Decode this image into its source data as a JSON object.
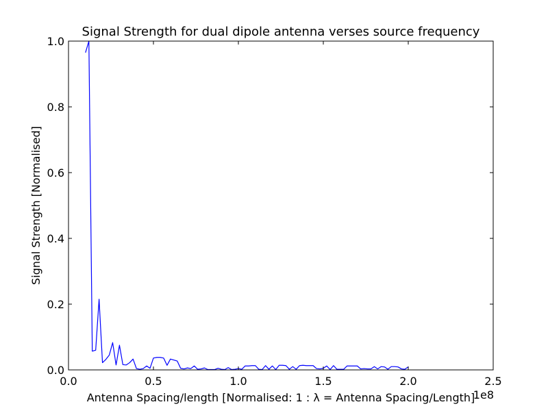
{
  "chart_data": {
    "type": "line",
    "title": "Signal Strength for dual dipole antenna verses source frequency",
    "xlabel": "Antenna Spacing/length [Normalised: 1 :  λ = Antenna Spacing/Length]",
    "ylabel": "Signal Strength [Normalised]",
    "x_offset_label": "1e8",
    "xlim": [
      0,
      2.5
    ],
    "ylim": [
      0,
      1.0
    ],
    "x_ticks": [
      {
        "value": 0.0,
        "label": "0.0"
      },
      {
        "value": 0.5,
        "label": "0.5"
      },
      {
        "value": 1.0,
        "label": "1.0"
      },
      {
        "value": 1.5,
        "label": "1.5"
      },
      {
        "value": 2.0,
        "label": "2.0"
      },
      {
        "value": 2.5,
        "label": "2.5"
      }
    ],
    "y_ticks": [
      {
        "value": 0.0,
        "label": "0.0"
      },
      {
        "value": 0.2,
        "label": "0.2"
      },
      {
        "value": 0.4,
        "label": "0.4"
      },
      {
        "value": 0.6,
        "label": "0.6"
      },
      {
        "value": 0.8,
        "label": "0.8"
      },
      {
        "value": 1.0,
        "label": "1.0"
      }
    ],
    "grid": false,
    "line_color": "#0000ff",
    "series": [
      {
        "x": [
          0.1,
          0.12,
          0.14,
          0.16,
          0.18,
          0.2,
          0.22,
          0.24,
          0.26,
          0.28,
          0.3,
          0.32,
          0.34,
          0.36,
          0.38,
          0.4,
          0.42,
          0.44,
          0.46,
          0.48,
          0.5,
          0.52,
          0.54,
          0.56,
          0.58,
          0.6,
          0.62,
          0.64,
          0.66,
          0.68,
          0.7,
          0.72,
          0.74,
          0.76,
          0.78,
          0.8,
          0.82,
          0.84,
          0.86,
          0.88,
          0.9,
          0.92,
          0.94,
          0.96,
          0.98,
          1.0,
          1.02,
          1.04,
          1.06,
          1.08,
          1.1,
          1.12,
          1.14,
          1.16,
          1.18,
          1.2,
          1.22,
          1.24,
          1.26,
          1.28,
          1.3,
          1.32,
          1.34,
          1.36,
          1.38,
          1.4,
          1.42,
          1.44,
          1.46,
          1.48,
          1.5,
          1.52,
          1.54,
          1.56,
          1.58,
          1.6,
          1.62,
          1.64,
          1.66,
          1.68,
          1.7,
          1.72,
          1.74,
          1.76,
          1.78,
          1.8,
          1.82,
          1.84,
          1.86,
          1.88,
          1.9,
          1.92,
          1.94,
          1.96,
          1.98,
          2.0
        ],
        "y": [
          0.965,
          1.0,
          0.057,
          0.06,
          0.215,
          0.022,
          0.032,
          0.045,
          0.083,
          0.015,
          0.075,
          0.016,
          0.015,
          0.022,
          0.033,
          0.004,
          0.002,
          0.004,
          0.012,
          0.005,
          0.036,
          0.038,
          0.038,
          0.036,
          0.014,
          0.033,
          0.03,
          0.027,
          0.005,
          0.003,
          0.006,
          0.004,
          0.012,
          0.002,
          0.003,
          0.006,
          0.001,
          0.001,
          0.001,
          0.005,
          0.002,
          0.001,
          0.007,
          0.001,
          0.002,
          0.004,
          0.002,
          0.012,
          0.012,
          0.013,
          0.013,
          0.002,
          0.001,
          0.013,
          0.002,
          0.012,
          0.001,
          0.014,
          0.014,
          0.013,
          0.002,
          0.01,
          0.002,
          0.013,
          0.014,
          0.013,
          0.013,
          0.013,
          0.004,
          0.003,
          0.005,
          0.012,
          0.001,
          0.013,
          0.002,
          0.002,
          0.002,
          0.012,
          0.012,
          0.012,
          0.012,
          0.003,
          0.004,
          0.003,
          0.003,
          0.01,
          0.003,
          0.01,
          0.009,
          0.002,
          0.01,
          0.01,
          0.009,
          0.003,
          0.002,
          0.009
        ]
      }
    ]
  }
}
